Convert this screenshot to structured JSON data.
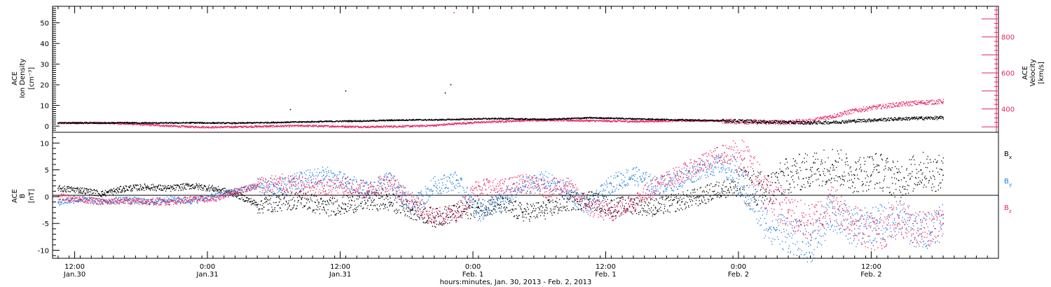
{
  "colors": {
    "black": "#000000",
    "blue": "#1f7fe0",
    "pink": "#e8245e"
  },
  "footer": {
    "xlabel": "hours:minutes, Jan. 30, 2013 - Feb. 2, 2013"
  },
  "chart_data": [
    {
      "type": "scatter",
      "panel": "top",
      "ylabel_left": [
        "ACE",
        "Ion Density",
        "[cm⁻³]"
      ],
      "ylabel_right": [
        "ACE",
        "Velocity",
        "[km/s]"
      ],
      "y_left_range": [
        -3,
        58
      ],
      "y_left_ticks": [
        0,
        10,
        20,
        30,
        40,
        50
      ],
      "y_left_tick_labels": [
        "0",
        "10",
        "20",
        "30",
        "40",
        "50"
      ],
      "y_right_range": [
        270,
        970
      ],
      "y_right_ticks": [
        400,
        600,
        800
      ],
      "y_right_tick_labels": [
        "400",
        "600",
        "800"
      ],
      "x_range_hours": [
        -4.5,
        81
      ],
      "series": [
        {
          "color": "black",
          "axis": "left",
          "x": [
            -4,
            -2,
            0,
            2,
            4,
            6,
            8,
            10,
            12,
            14,
            16,
            18,
            20,
            22,
            24,
            26,
            28,
            30,
            32,
            34,
            36,
            38,
            40,
            42,
            44,
            46,
            48,
            50,
            52,
            54,
            56,
            58,
            60,
            62,
            64,
            66,
            68,
            70,
            72,
            74,
            76
          ],
          "y": [
            1.5,
            1.5,
            1.4,
            1.6,
            1.5,
            1.5,
            1.6,
            1.5,
            1.4,
            1.6,
            1.8,
            2.0,
            2.2,
            2.4,
            2.5,
            2.8,
            3.0,
            3.0,
            3.2,
            3.5,
            3.6,
            3.4,
            3.2,
            3.6,
            4.0,
            3.8,
            3.5,
            3.3,
            3.0,
            2.8,
            2.6,
            2.4,
            2.0,
            1.8,
            1.6,
            1.8,
            2.5,
            3.0,
            3.5,
            3.8,
            4.0
          ]
        },
        {
          "color": "pink",
          "axis": "right",
          "x": [
            -4,
            -2,
            0,
            2,
            4,
            6,
            8,
            10,
            12,
            14,
            16,
            18,
            20,
            22,
            24,
            26,
            28,
            30,
            32,
            34,
            36,
            38,
            40,
            42,
            44,
            46,
            48,
            50,
            52,
            54,
            56,
            58,
            60,
            62,
            64,
            66,
            68,
            70,
            72,
            74,
            76
          ],
          "y": [
            320,
            323,
            322,
            318,
            312,
            305,
            300,
            298,
            300,
            302,
            304,
            306,
            304,
            302,
            300,
            302,
            304,
            308,
            318,
            325,
            330,
            335,
            338,
            336,
            334,
            332,
            330,
            332,
            334,
            335,
            332,
            328,
            325,
            326,
            332,
            360,
            390,
            410,
            425,
            435,
            440
          ]
        }
      ],
      "annotations": [
        {
          "x": 17,
          "y": 8,
          "label": ""
        },
        {
          "x": 22,
          "y": 17,
          "label": ""
        },
        {
          "x": 31,
          "y": 16,
          "label": ""
        },
        {
          "x": 31.5,
          "y": 20,
          "label": ""
        },
        {
          "x": 31.8,
          "y": 55,
          "label": ""
        }
      ]
    },
    {
      "type": "scatter",
      "panel": "bottom",
      "ylabel_left": [
        "ACE",
        "B",
        "[nT]"
      ],
      "y_range": [
        -11.5,
        12
      ],
      "y_ticks": [
        -10,
        -5,
        0,
        5,
        10
      ],
      "y_tick_labels": [
        "-10",
        "-5",
        "0",
        "5",
        "10"
      ],
      "x_range_hours": [
        -4.5,
        81
      ],
      "x_ticks_hours": [
        -2.5,
        9.5,
        21.5,
        33.5,
        45.5,
        57.5,
        69.5
      ],
      "x_tick_labels": [
        [
          "12:00",
          "Jan.30"
        ],
        [
          "0:00",
          "Jan.31"
        ],
        [
          "12:00",
          "Jan.31"
        ],
        [
          "0:00",
          "Feb. 1"
        ],
        [
          "12:00",
          "Feb. 1"
        ],
        [
          "0:00",
          "Feb. 2"
        ],
        [
          "12:00",
          "Feb. 2"
        ]
      ],
      "series": [
        {
          "name": "Bx",
          "label": "B",
          "subscript": "x",
          "color": "black",
          "x": [
            -4,
            -2,
            0,
            2,
            4,
            6,
            8,
            10,
            12,
            14,
            16,
            18,
            20,
            22,
            24,
            26,
            28,
            30,
            32,
            34,
            36,
            38,
            40,
            42,
            44,
            46,
            48,
            50,
            52,
            54,
            56,
            58,
            60,
            62,
            64,
            66,
            68,
            70,
            72,
            74,
            76
          ],
          "y": [
            1.5,
            1.2,
            0.5,
            1.5,
            1.8,
            1.5,
            2.0,
            1.5,
            0.5,
            -1.5,
            -1.0,
            -0.5,
            -2.0,
            -1.5,
            -0.8,
            -1.0,
            -2.5,
            -4.0,
            -3.0,
            -2.0,
            -1.5,
            -3.0,
            -2.5,
            -1.0,
            -0.5,
            -2.0,
            -1.5,
            -2.0,
            -1.0,
            0.0,
            1.5,
            2.0,
            1.0,
            4.0,
            5.0,
            6.0,
            4.0,
            5.0,
            3.0,
            5.0,
            4.0
          ]
        },
        {
          "name": "By",
          "label": "B",
          "subscript": "y",
          "color": "blue",
          "x": [
            -4,
            -2,
            0,
            2,
            4,
            6,
            8,
            10,
            12,
            14,
            16,
            18,
            20,
            22,
            24,
            26,
            28,
            30,
            32,
            34,
            36,
            38,
            40,
            42,
            44,
            46,
            48,
            50,
            52,
            54,
            56,
            58,
            60,
            62,
            64,
            66,
            68,
            70,
            72,
            74,
            76
          ],
          "y": [
            -1.0,
            -0.5,
            -1.0,
            -0.5,
            -1.0,
            -0.5,
            -0.8,
            0.0,
            1.0,
            2.0,
            1.5,
            3.0,
            4.0,
            2.5,
            1.0,
            3.0,
            -2.0,
            2.0,
            3.0,
            -3.0,
            -1.0,
            2.0,
            3.0,
            1.0,
            -2.0,
            2.5,
            4.0,
            2.0,
            3.0,
            5.0,
            6.0,
            2.0,
            -5.0,
            -7.0,
            -9.0,
            -3.0,
            -6.0,
            -5.0,
            -4.0,
            -7.0,
            -4.0
          ]
        },
        {
          "name": "Bz",
          "label": "B",
          "subscript": "z",
          "color": "pink",
          "x": [
            -4,
            -2,
            0,
            2,
            4,
            6,
            8,
            10,
            12,
            14,
            16,
            18,
            20,
            22,
            24,
            26,
            28,
            30,
            32,
            34,
            36,
            38,
            40,
            42,
            44,
            46,
            48,
            50,
            52,
            54,
            56,
            58,
            60,
            62,
            64,
            66,
            68,
            70,
            72,
            74,
            76
          ],
          "y": [
            0.0,
            -0.5,
            -1.0,
            -0.8,
            -1.0,
            -1.0,
            -0.5,
            -0.5,
            1.0,
            2.0,
            2.5,
            2.0,
            1.5,
            2.0,
            1.0,
            3.0,
            -1.0,
            -4.0,
            -3.0,
            2.0,
            1.5,
            2.5,
            1.5,
            2.0,
            -2.0,
            -3.0,
            -1.0,
            2.0,
            4.0,
            6.0,
            8.0,
            7.0,
            1.0,
            -3.0,
            -5.0,
            -1.0,
            -5.0,
            -7.0,
            -4.0,
            -6.0,
            -5.0
          ]
        }
      ]
    }
  ]
}
